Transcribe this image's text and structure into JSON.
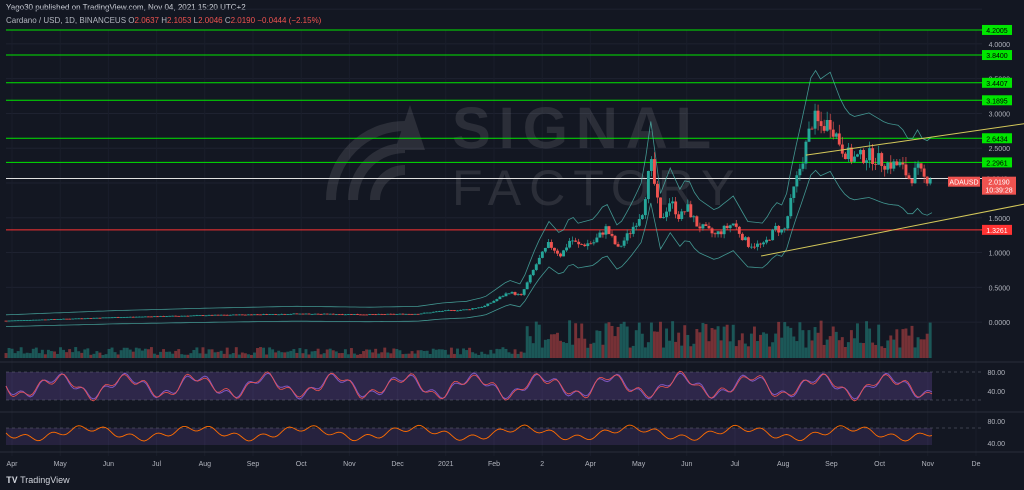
{
  "header": {
    "published": "Yago30 published on TradingView.com, Nov 04, 2021 15:20 UTC+2",
    "symbol": "Cardano / USD, 1D, BINANCEUS",
    "ohlc": [
      {
        "k": "O",
        "v": "2.0637"
      },
      {
        "k": "H",
        "v": "2.1053"
      },
      {
        "k": "L",
        "v": "2.0046"
      },
      {
        "k": "C",
        "v": "2.0190"
      }
    ],
    "change": "−0.0444 (−2.15%)"
  },
  "watermark": {
    "line1": "SIGNAL",
    "line2": "FACTORY"
  },
  "brand": "TradingView",
  "colors": {
    "bg": "#131722",
    "up": "#26a69a",
    "down": "#ef5350",
    "green_level": "#00e600",
    "red_level": "#ff3333",
    "white_level": "#e0e0e0",
    "trend": "#d4c85a",
    "rsi": "#7e57c2",
    "osc": "#ff6d00"
  },
  "chart_data": {
    "type": "candlestick",
    "symbol": "ADAUSD",
    "x_labels": [
      "Apr",
      "May",
      "Jun",
      "Jul",
      "Aug",
      "Sep",
      "Oct",
      "Nov",
      "Dec",
      "2021",
      "Feb",
      "2",
      "Apr",
      "May",
      "Jun",
      "Jul",
      "Aug",
      "Sep",
      "Oct",
      "Nov",
      "De"
    ],
    "y_ticks": [
      "4.",
      "4.0000",
      "3.5000",
      "3.0000",
      "2.5000",
      "2.0000",
      "1.5000",
      "1.0000",
      "0.5000",
      "0.0000"
    ],
    "ylim": [
      -0.2,
      4.2
    ],
    "levels": [
      {
        "value": 4.2005,
        "label": "4.2005",
        "kind": "green"
      },
      {
        "value": 3.84,
        "label": "3.8400",
        "kind": "green"
      },
      {
        "value": 3.4407,
        "label": "3.4407",
        "kind": "green"
      },
      {
        "value": 3.1895,
        "label": "3.1895",
        "kind": "green"
      },
      {
        "value": 2.6434,
        "label": "2.6434",
        "kind": "green"
      },
      {
        "value": 2.2961,
        "label": "2.2961",
        "kind": "green"
      },
      {
        "value": 2.0649,
        "label": "2.0649",
        "kind": "white"
      },
      {
        "value": 1.3261,
        "label": "1.3261",
        "kind": "red"
      }
    ],
    "last_price": {
      "symbol": "ADAUSD",
      "value": "2.0190",
      "countdown": "10:39:28"
    },
    "price_path": [
      [
        0,
        0.02
      ],
      [
        90,
        0.07
      ],
      [
        170,
        0.1
      ],
      [
        240,
        0.12
      ],
      [
        300,
        0.11
      ],
      [
        340,
        0.12
      ],
      [
        360,
        0.16
      ],
      [
        380,
        0.18
      ],
      [
        395,
        0.23
      ],
      [
        405,
        0.33
      ],
      [
        415,
        0.43
      ],
      [
        425,
        0.38
      ],
      [
        438,
        0.85
      ],
      [
        448,
        1.12
      ],
      [
        458,
        0.96
      ],
      [
        466,
        1.2
      ],
      [
        472,
        1.1
      ],
      [
        485,
        1.15
      ],
      [
        495,
        1.35
      ],
      [
        505,
        1.05
      ],
      [
        515,
        1.3
      ],
      [
        525,
        1.6
      ],
      [
        532,
        2.3
      ],
      [
        540,
        1.45
      ],
      [
        548,
        1.75
      ],
      [
        556,
        1.5
      ],
      [
        562,
        1.65
      ],
      [
        570,
        1.4
      ],
      [
        585,
        1.25
      ],
      [
        600,
        1.42
      ],
      [
        612,
        1.12
      ],
      [
        625,
        1.1
      ],
      [
        635,
        1.35
      ],
      [
        642,
        1.3
      ],
      [
        650,
        1.9
      ],
      [
        658,
        2.4
      ],
      [
        666,
        2.95
      ],
      [
        672,
        2.8
      ],
      [
        680,
        2.88
      ],
      [
        690,
        2.5
      ],
      [
        698,
        2.35
      ],
      [
        712,
        2.4
      ],
      [
        726,
        2.28
      ],
      [
        738,
        2.25
      ],
      [
        746,
        2.05
      ],
      [
        752,
        2.2
      ],
      [
        758,
        2.05
      ],
      [
        764,
        2.12
      ]
    ],
    "upper_trendline": [
      [
        660,
        2.4
      ],
      [
        1010,
        3.28
      ]
    ],
    "lower_trendline": [
      [
        623,
        0.95
      ],
      [
        1010,
        2.28
      ]
    ],
    "rsi": {
      "ticks": [
        "80.00",
        "40.00"
      ]
    },
    "oscillator": {
      "ticks": [
        "80.00",
        "40.00"
      ]
    }
  }
}
